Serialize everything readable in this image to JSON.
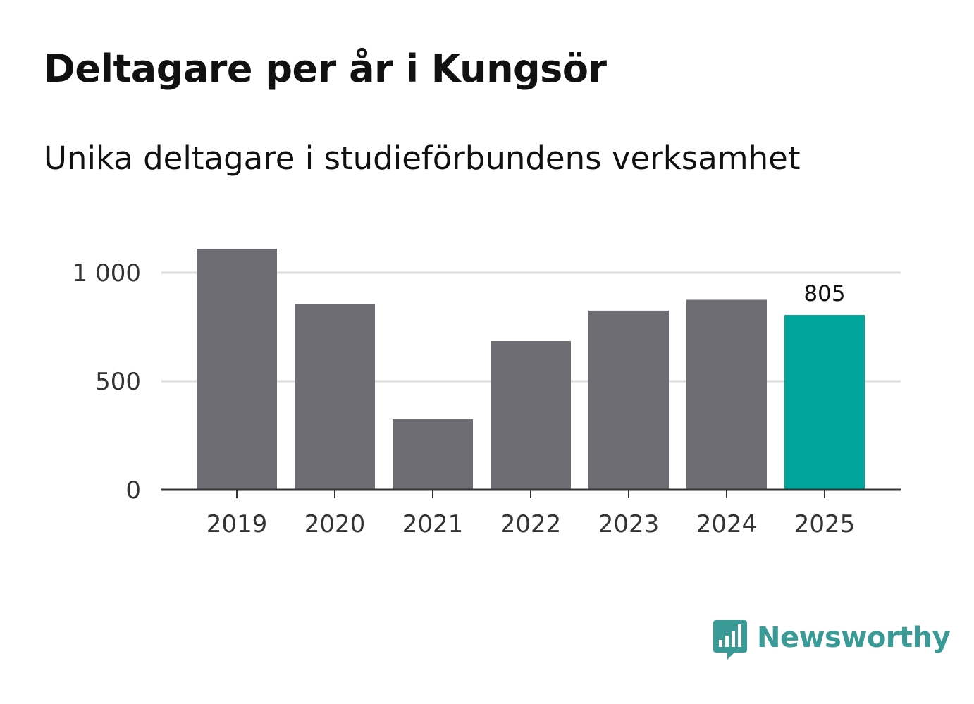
{
  "title": "Deltagare per år i Kungsör",
  "subtitle": "Unika deltagare i studieförbundens verksamhet",
  "brand": {
    "name": "Newsworthy",
    "color": "#3a9b96",
    "icon": "bar-chart-speech-bubble-icon"
  },
  "colors": {
    "bar": "#6e6d73",
    "highlight": "#00a69b",
    "grid": "#dcdcdc",
    "axis": "#333333"
  },
  "chart_data": {
    "type": "bar",
    "title": "Deltagare per år i Kungsör",
    "subtitle": "Unika deltagare i studieförbundens verksamhet",
    "xlabel": "",
    "ylabel": "",
    "categories": [
      "2019",
      "2020",
      "2021",
      "2022",
      "2023",
      "2024",
      "2025"
    ],
    "values": [
      1110,
      855,
      325,
      685,
      825,
      875,
      805
    ],
    "highlight_index": 6,
    "data_labels": [
      {
        "index": 6,
        "text": "805"
      }
    ],
    "ylim": [
      0,
      1000
    ],
    "yticks": [
      0,
      500,
      1000
    ],
    "ytick_labels": [
      "0",
      "500",
      "1 000"
    ],
    "grid": true
  }
}
